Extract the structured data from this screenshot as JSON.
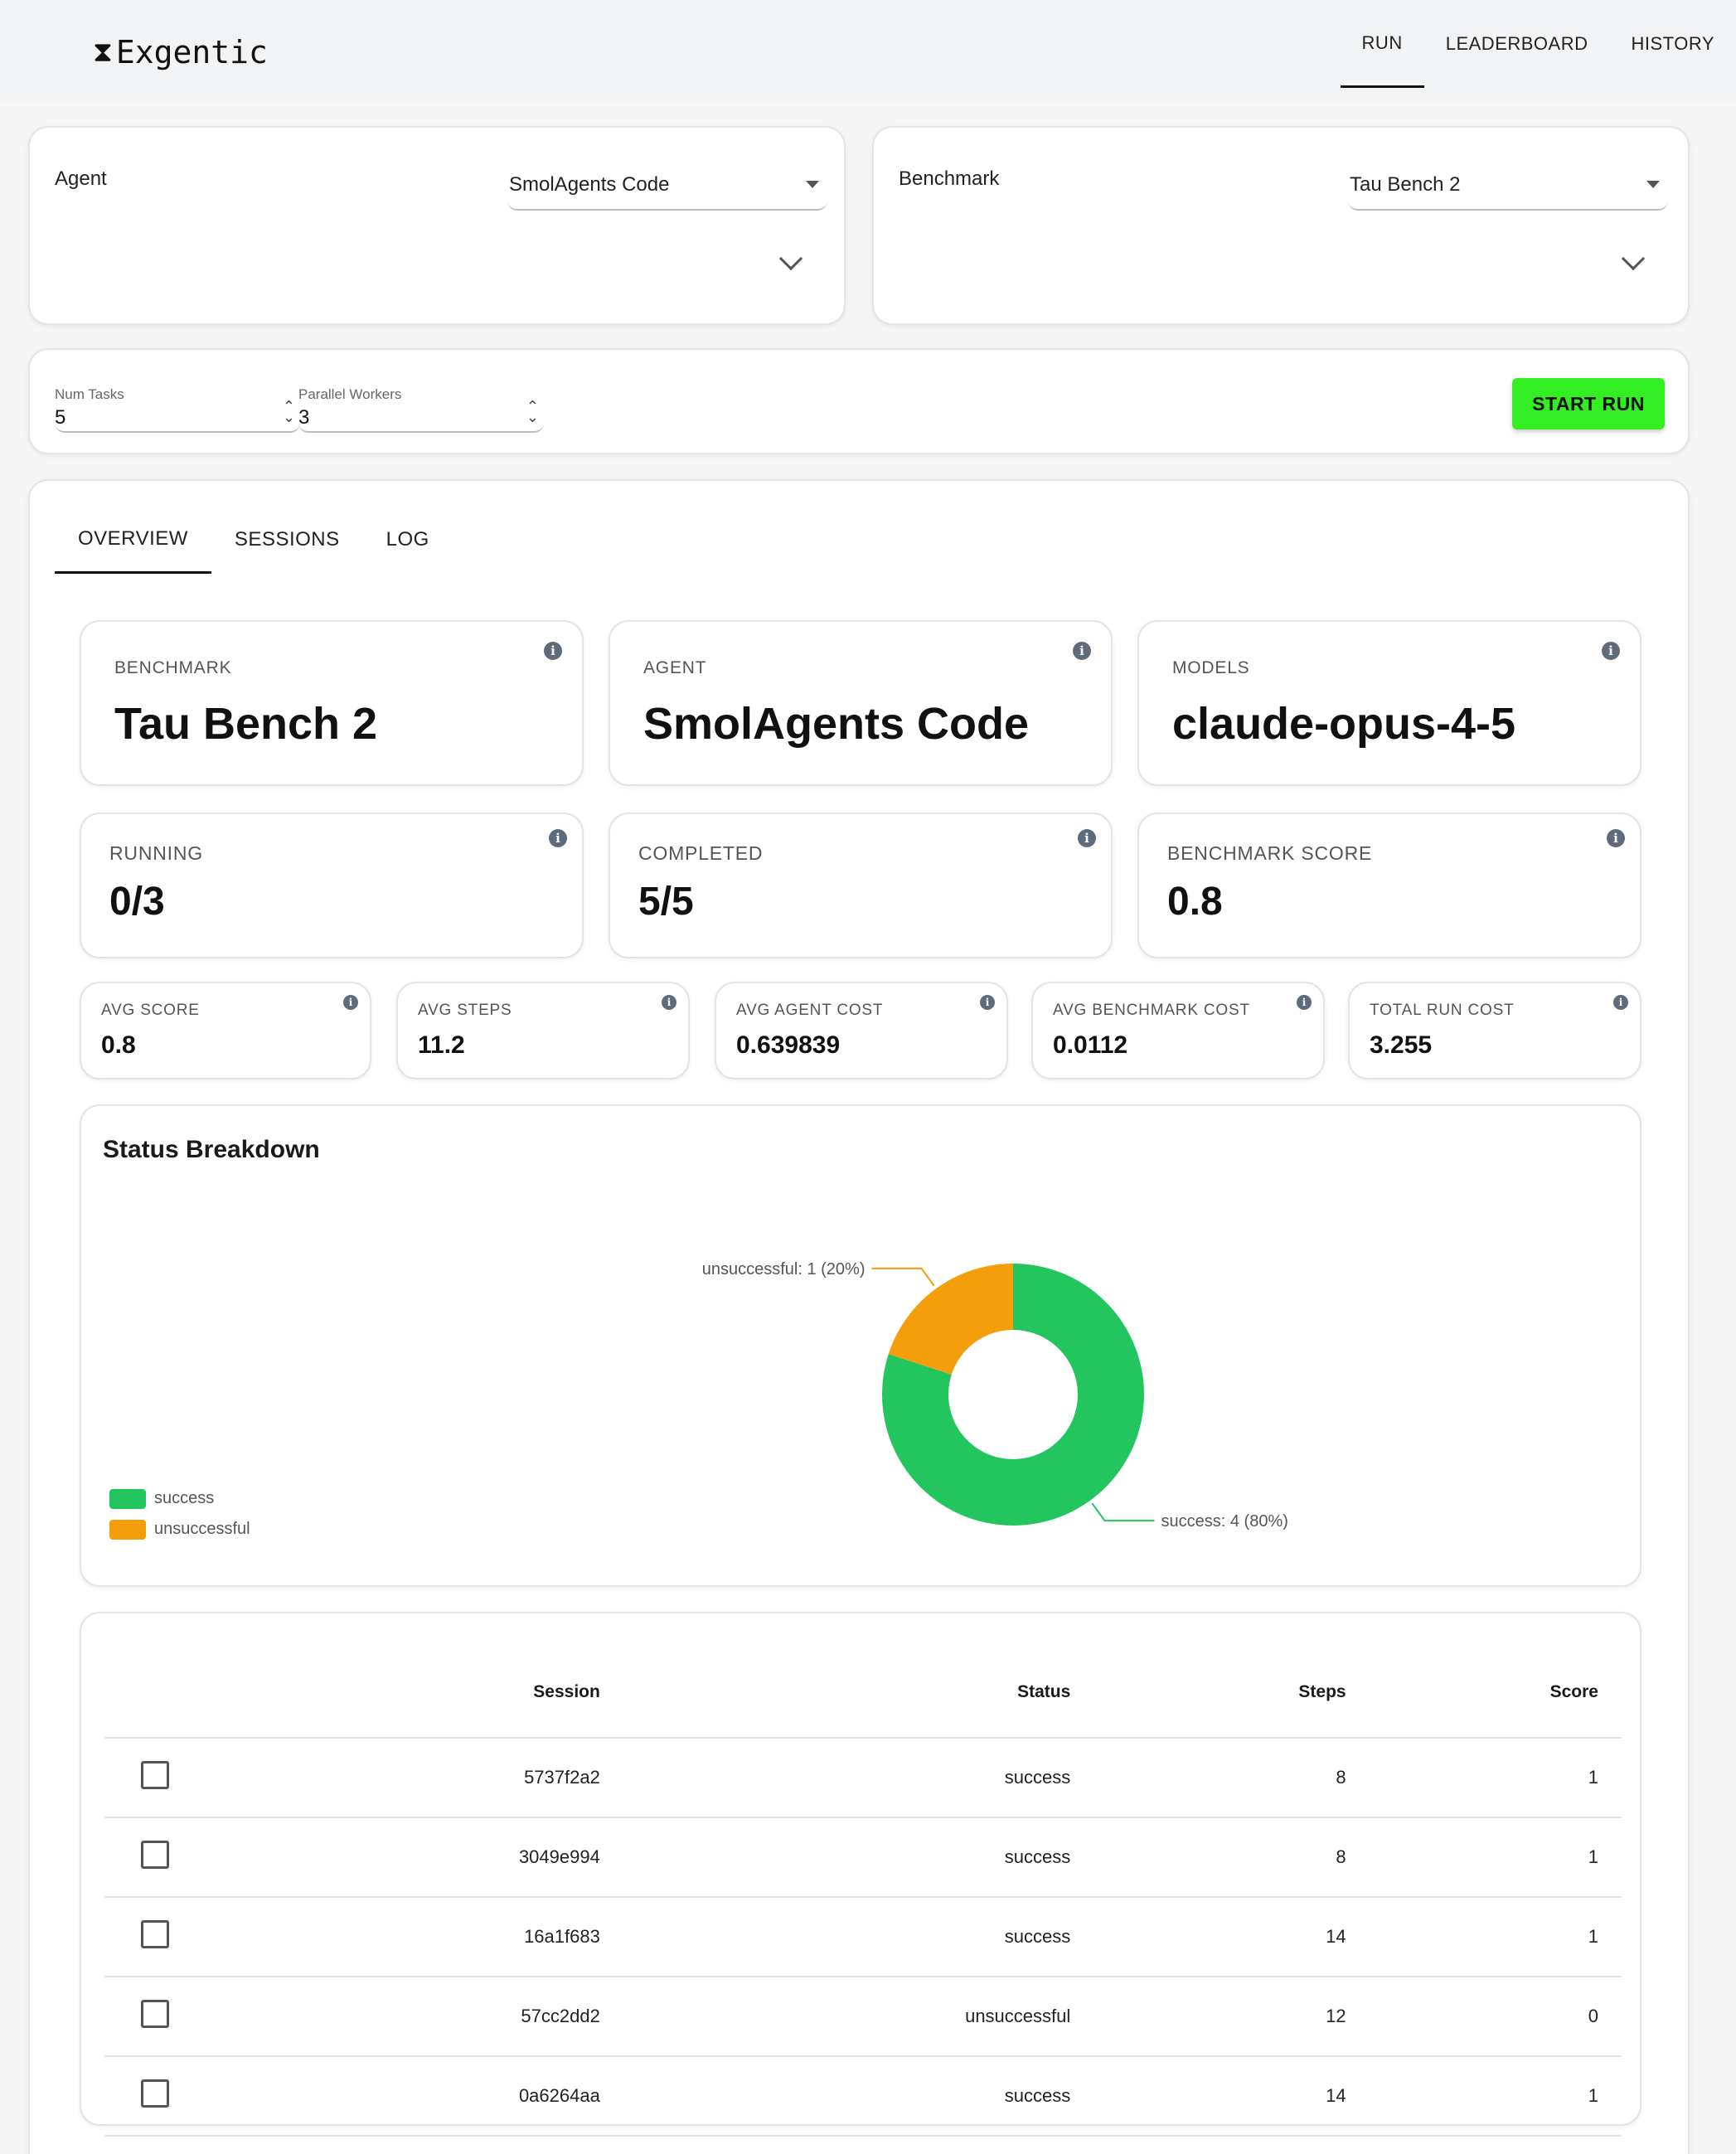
{
  "brand": {
    "name": "Exgentic",
    "icon": "hourglass-icon"
  },
  "nav": [
    "RUN",
    "LEADERBOARD",
    "HISTORY"
  ],
  "agent": {
    "label": "Agent",
    "value": "SmolAgents Code"
  },
  "benchmark": {
    "label": "Benchmark",
    "value": "Tau Bench 2"
  },
  "run_config": {
    "num_tasks_label": "Num Tasks",
    "num_tasks": "5",
    "workers_label": "Parallel Workers",
    "workers": "3",
    "start_label": "START RUN"
  },
  "tabs": [
    "OVERVIEW",
    "SESSIONS",
    "LOG"
  ],
  "summary": [
    {
      "label": "BENCHMARK",
      "value": "Tau Bench 2"
    },
    {
      "label": "AGENT",
      "value": "SmolAgents Code"
    },
    {
      "label": "MODELS",
      "value": "claude-opus-4-5"
    }
  ],
  "progress": [
    {
      "label": "RUNNING",
      "value": "0/3"
    },
    {
      "label": "COMPLETED",
      "value": "5/5"
    },
    {
      "label": "BENCHMARK SCORE",
      "value": "0.8"
    }
  ],
  "metrics": [
    {
      "label": "AVG SCORE",
      "value": "0.8"
    },
    {
      "label": "AVG STEPS",
      "value": "11.2"
    },
    {
      "label": "AVG AGENT COST",
      "value": "0.639839"
    },
    {
      "label": "AVG BENCHMARK COST",
      "value": "0.0112"
    },
    {
      "label": "TOTAL RUN COST",
      "value": "3.255"
    }
  ],
  "chart_data": {
    "type": "pie",
    "title": "Status Breakdown",
    "categories": [
      "success",
      "unsuccessful"
    ],
    "values": [
      4,
      1
    ],
    "colors": [
      "#22c55e",
      "#f59e0b"
    ],
    "data_labels": [
      "success: 4 (80%)",
      "unsuccessful: 1 (20%)"
    ],
    "legend": "bottom-left"
  },
  "table": {
    "headers": [
      "Session",
      "Status",
      "Steps",
      "Score"
    ],
    "rows": [
      [
        "5737f2a2",
        "success",
        "8",
        "1"
      ],
      [
        "3049e994",
        "success",
        "8",
        "1"
      ],
      [
        "16a1f683",
        "success",
        "14",
        "1"
      ],
      [
        "57cc2dd2",
        "unsuccessful",
        "12",
        "0"
      ],
      [
        "0a6264aa",
        "success",
        "14",
        "1"
      ]
    ]
  }
}
